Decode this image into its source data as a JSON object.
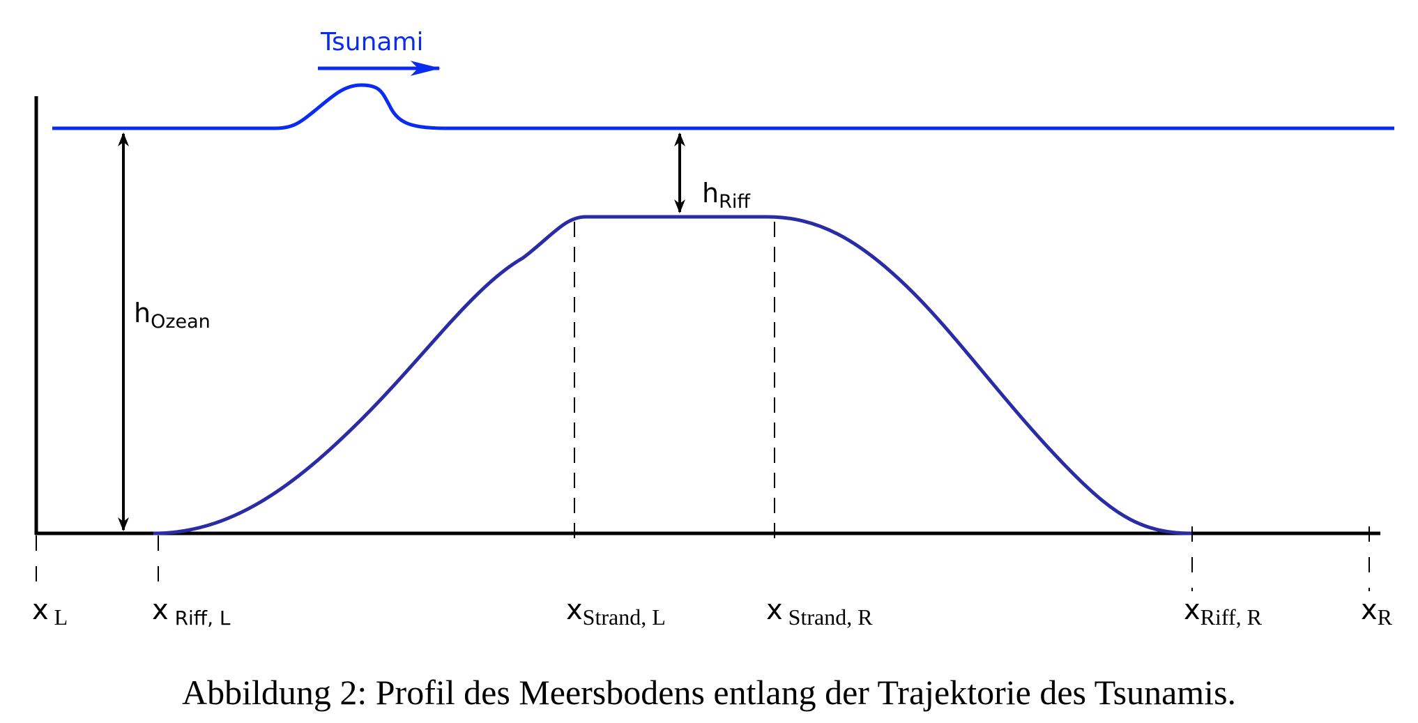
{
  "colors": {
    "water": "#0a2cf0",
    "seabed": "#2a2ca6",
    "axis": "#000000",
    "text": "#000000"
  },
  "labels": {
    "tsunami": "Tsunami",
    "h_ocean": {
      "base": "h",
      "sub": "Ozean"
    },
    "h_reef": {
      "base": "h",
      "sub": "Riff"
    },
    "x_L": {
      "base": "x",
      "sub": " L"
    },
    "x_reef_L": {
      "base": "x",
      "sub": " Riff, L"
    },
    "x_beach_L": {
      "base": "x",
      "sub": "Strand, L"
    },
    "x_beach_R": {
      "base": "x",
      "sub": " Strand, R"
    },
    "x_reef_R": {
      "base": "x",
      "sub": "Riff, R"
    },
    "x_R": {
      "base": "x",
      "sub": "R"
    }
  },
  "caption": "Abbildung 2: Profil des Meersbodens entlang der Trajektorie des Tsunamis."
}
